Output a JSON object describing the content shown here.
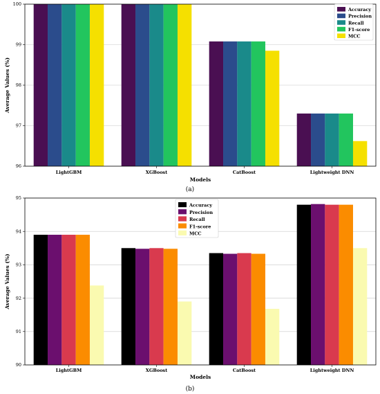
{
  "chart_data": [
    {
      "type": "bar",
      "panel_label": "(a)",
      "xlabel": "Models",
      "ylabel": "Average Values (%)",
      "ylim": [
        96,
        100
      ],
      "yticks": [
        96,
        97,
        98,
        99,
        100
      ],
      "grid": true,
      "legend_position": "top-right",
      "categories": [
        "LightGBM",
        "XGBoost",
        "CatBoost",
        "Lightweight DNN"
      ],
      "series": [
        {
          "name": "Accuracy",
          "color": "#4a0f52",
          "values": [
            100,
            100,
            99.08,
            97.3
          ]
        },
        {
          "name": "Precision",
          "color": "#2b4c8c",
          "values": [
            100,
            100,
            99.08,
            97.3
          ]
        },
        {
          "name": "Recall",
          "color": "#1a8a8a",
          "values": [
            100,
            100,
            99.08,
            97.3
          ]
        },
        {
          "name": "F1-score",
          "color": "#22c55e",
          "values": [
            100,
            100,
            99.08,
            97.3
          ]
        },
        {
          "name": "MCC",
          "color": "#f5e000",
          "values": [
            100,
            100,
            98.85,
            96.62
          ]
        }
      ]
    },
    {
      "type": "bar",
      "panel_label": "(b)",
      "xlabel": "Models",
      "ylabel": "Average Values (%)",
      "ylim": [
        90,
        95
      ],
      "yticks": [
        90,
        91,
        92,
        93,
        94,
        95
      ],
      "grid": true,
      "legend_position": "top-center",
      "categories": [
        "LightGBM",
        "XGBoost",
        "CatBoost",
        "Lightweight DNN"
      ],
      "series": [
        {
          "name": "Accuracy",
          "color": "#000000",
          "values": [
            93.9,
            93.5,
            93.35,
            94.8
          ]
        },
        {
          "name": "Precision",
          "color": "#6b0f6e",
          "values": [
            93.9,
            93.48,
            93.33,
            94.82
          ]
        },
        {
          "name": "Recall",
          "color": "#d93a4e",
          "values": [
            93.9,
            93.5,
            93.35,
            94.8
          ]
        },
        {
          "name": "F1-score",
          "color": "#fb8c00",
          "values": [
            93.9,
            93.48,
            93.33,
            94.8
          ]
        },
        {
          "name": "MCC",
          "color": "#fafab0",
          "values": [
            92.38,
            91.9,
            91.68,
            93.5
          ]
        }
      ]
    }
  ]
}
